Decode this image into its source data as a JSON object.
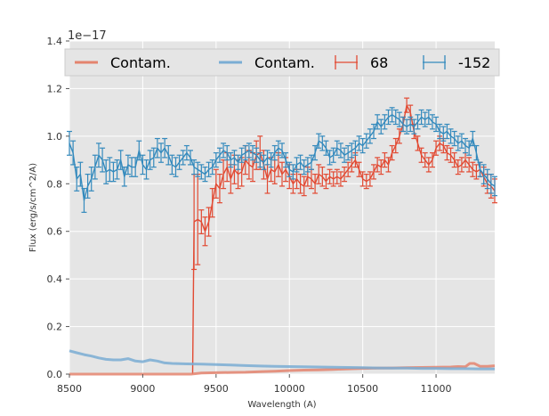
{
  "chart_data": {
    "type": "line",
    "title": "",
    "xlabel": "Wavelength (A)",
    "ylabel": "Flux (erg/s/cm^2/A)",
    "y_offset_label": "1e−17",
    "xlim": [
      8500,
      11400
    ],
    "ylim": [
      0.0,
      1.4
    ],
    "x_ticks": [
      8500,
      9000,
      9500,
      10000,
      10500,
      11000
    ],
    "x_tick_labels": [
      "8500",
      "9000",
      "9500",
      "10000",
      "10500",
      "11000"
    ],
    "y_ticks": [
      0.0,
      0.2,
      0.4,
      0.6,
      0.8,
      1.0,
      1.2,
      1.4
    ],
    "y_tick_labels": [
      "0.0",
      "0.2",
      "0.4",
      "0.6",
      "0.8",
      "1.0",
      "1.2",
      "1.4"
    ],
    "grid": true,
    "legend_position": "top",
    "legend": [
      {
        "label": "Contam.",
        "kind": "line",
        "color": "#E4846E"
      },
      {
        "label": "Contam.",
        "kind": "line",
        "color": "#7AADD4"
      },
      {
        "label": "68",
        "kind": "errorbar",
        "color": "#E24A33"
      },
      {
        "label": "-152",
        "kind": "errorbar",
        "color": "#348ABD"
      }
    ],
    "series": [
      {
        "name": "68",
        "color": "#E24A33",
        "x": [
          9350,
          9375,
          9400,
          9425,
          9450,
          9475,
          9500,
          9525,
          9550,
          9575,
          9600,
          9625,
          9650,
          9675,
          9700,
          9725,
          9750,
          9775,
          9800,
          9825,
          9850,
          9875,
          9900,
          9925,
          9950,
          9975,
          10000,
          10025,
          10050,
          10075,
          10100,
          10125,
          10150,
          10175,
          10200,
          10225,
          10250,
          10275,
          10300,
          10325,
          10350,
          10375,
          10400,
          10425,
          10450,
          10475,
          10500,
          10525,
          10550,
          10575,
          10600,
          10625,
          10650,
          10675,
          10700,
          10725,
          10750,
          10775,
          10800,
          10825,
          10850,
          10875,
          10900,
          10925,
          10950,
          10975,
          11000,
          11025,
          11050,
          11075,
          11100,
          11125,
          11150,
          11175,
          11200,
          11225,
          11250,
          11275,
          11300,
          11325,
          11350,
          11375,
          11400
        ],
        "y": [
          0.64,
          0.65,
          0.64,
          0.6,
          0.64,
          0.72,
          0.8,
          0.78,
          0.84,
          0.87,
          0.82,
          0.86,
          0.84,
          0.85,
          0.9,
          0.88,
          0.87,
          0.92,
          0.93,
          0.88,
          0.82,
          0.86,
          0.85,
          0.88,
          0.84,
          0.86,
          0.83,
          0.8,
          0.82,
          0.8,
          0.79,
          0.83,
          0.82,
          0.8,
          0.84,
          0.83,
          0.81,
          0.83,
          0.82,
          0.83,
          0.82,
          0.84,
          0.86,
          0.88,
          0.9,
          0.86,
          0.82,
          0.81,
          0.82,
          0.85,
          0.88,
          0.87,
          0.9,
          0.88,
          0.93,
          0.96,
          1.0,
          1.05,
          1.13,
          1.1,
          1.02,
          0.97,
          0.92,
          0.9,
          0.88,
          0.9,
          0.95,
          0.97,
          0.96,
          0.93,
          0.92,
          0.9,
          0.87,
          0.88,
          0.9,
          0.88,
          0.86,
          0.85,
          0.86,
          0.83,
          0.8,
          0.79,
          0.77
        ],
        "err": [
          0.2,
          0.19,
          0.05,
          0.06,
          0.06,
          0.06,
          0.06,
          0.06,
          0.06,
          0.06,
          0.06,
          0.06,
          0.06,
          0.06,
          0.06,
          0.06,
          0.06,
          0.06,
          0.07,
          0.06,
          0.06,
          0.05,
          0.05,
          0.05,
          0.05,
          0.05,
          0.05,
          0.04,
          0.04,
          0.04,
          0.04,
          0.04,
          0.04,
          0.04,
          0.04,
          0.04,
          0.03,
          0.03,
          0.03,
          0.03,
          0.03,
          0.03,
          0.03,
          0.03,
          0.03,
          0.03,
          0.03,
          0.03,
          0.03,
          0.03,
          0.03,
          0.03,
          0.03,
          0.03,
          0.03,
          0.03,
          0.03,
          0.03,
          0.03,
          0.03,
          0.03,
          0.03,
          0.03,
          0.03,
          0.03,
          0.03,
          0.03,
          0.03,
          0.03,
          0.03,
          0.03,
          0.03,
          0.03,
          0.03,
          0.03,
          0.03,
          0.03,
          0.03,
          0.03,
          0.04,
          0.04,
          0.05,
          0.05
        ],
        "drop_to_zero_at": 9340
      },
      {
        "name": "-152",
        "color": "#348ABD",
        "x": [
          8500,
          8525,
          8550,
          8575,
          8600,
          8625,
          8650,
          8675,
          8700,
          8725,
          8750,
          8775,
          8800,
          8825,
          8850,
          8875,
          8900,
          8925,
          8950,
          8975,
          9000,
          9025,
          9050,
          9075,
          9100,
          9125,
          9150,
          9175,
          9200,
          9225,
          9250,
          9275,
          9300,
          9325,
          9350,
          9375,
          9400,
          9425,
          9450,
          9475,
          9500,
          9525,
          9550,
          9575,
          9600,
          9625,
          9650,
          9675,
          9700,
          9725,
          9750,
          9775,
          9800,
          9825,
          9850,
          9875,
          9900,
          9925,
          9950,
          9975,
          10000,
          10025,
          10050,
          10075,
          10100,
          10125,
          10150,
          10175,
          10200,
          10225,
          10250,
          10275,
          10300,
          10325,
          10350,
          10375,
          10400,
          10425,
          10450,
          10475,
          10500,
          10525,
          10550,
          10575,
          10600,
          10625,
          10650,
          10675,
          10700,
          10725,
          10750,
          10775,
          10800,
          10825,
          10850,
          10875,
          10900,
          10925,
          10950,
          10975,
          11000,
          11025,
          11050,
          11075,
          11100,
          11125,
          11150,
          11175,
          11200,
          11225,
          11250,
          11275,
          11300,
          11325,
          11350,
          11375,
          11400
        ],
        "y": [
          0.97,
          0.93,
          0.82,
          0.84,
          0.73,
          0.79,
          0.82,
          0.87,
          0.92,
          0.9,
          0.85,
          0.86,
          0.85,
          0.86,
          0.9,
          0.83,
          0.88,
          0.87,
          0.87,
          0.94,
          0.88,
          0.86,
          0.9,
          0.91,
          0.95,
          0.93,
          0.95,
          0.92,
          0.88,
          0.87,
          0.89,
          0.91,
          0.93,
          0.91,
          0.87,
          0.86,
          0.85,
          0.84,
          0.86,
          0.87,
          0.9,
          0.92,
          0.94,
          0.93,
          0.9,
          0.91,
          0.89,
          0.92,
          0.93,
          0.94,
          0.93,
          0.92,
          0.9,
          0.89,
          0.91,
          0.9,
          0.93,
          0.95,
          0.94,
          0.9,
          0.86,
          0.85,
          0.88,
          0.89,
          0.87,
          0.88,
          0.89,
          0.93,
          0.98,
          0.97,
          0.95,
          0.91,
          0.92,
          0.95,
          0.94,
          0.92,
          0.93,
          0.94,
          0.95,
          0.97,
          0.96,
          0.98,
          1.0,
          1.02,
          1.06,
          1.04,
          1.06,
          1.08,
          1.09,
          1.08,
          1.07,
          1.05,
          1.04,
          1.05,
          1.04,
          1.06,
          1.08,
          1.07,
          1.08,
          1.06,
          1.05,
          1.02,
          1.01,
          1.02,
          1.0,
          0.99,
          0.97,
          0.98,
          0.96,
          0.95,
          0.99,
          0.93,
          0.86,
          0.84,
          0.82,
          0.8,
          0.79
        ],
        "err": [
          0.05,
          0.05,
          0.05,
          0.05,
          0.05,
          0.05,
          0.05,
          0.05,
          0.05,
          0.05,
          0.05,
          0.05,
          0.04,
          0.04,
          0.04,
          0.04,
          0.04,
          0.04,
          0.04,
          0.04,
          0.04,
          0.04,
          0.04,
          0.04,
          0.04,
          0.04,
          0.04,
          0.04,
          0.04,
          0.04,
          0.03,
          0.03,
          0.03,
          0.03,
          0.03,
          0.03,
          0.03,
          0.03,
          0.03,
          0.03,
          0.03,
          0.03,
          0.03,
          0.03,
          0.03,
          0.03,
          0.03,
          0.03,
          0.03,
          0.03,
          0.03,
          0.03,
          0.03,
          0.03,
          0.03,
          0.03,
          0.03,
          0.03,
          0.03,
          0.03,
          0.03,
          0.03,
          0.03,
          0.03,
          0.03,
          0.03,
          0.03,
          0.03,
          0.03,
          0.03,
          0.03,
          0.03,
          0.03,
          0.03,
          0.03,
          0.03,
          0.03,
          0.03,
          0.03,
          0.03,
          0.03,
          0.03,
          0.03,
          0.03,
          0.03,
          0.03,
          0.03,
          0.03,
          0.03,
          0.03,
          0.03,
          0.03,
          0.03,
          0.03,
          0.03,
          0.03,
          0.03,
          0.03,
          0.03,
          0.03,
          0.03,
          0.03,
          0.03,
          0.03,
          0.03,
          0.03,
          0.03,
          0.03,
          0.03,
          0.03,
          0.03,
          0.03,
          0.03,
          0.04,
          0.04,
          0.04,
          0.04
        ]
      },
      {
        "name": "Contam.",
        "color": "#E4846E",
        "x": [
          8500,
          9330,
          9400,
          9500,
          9600,
          9700,
          9800,
          9900,
          10000,
          10100,
          10200,
          10300,
          10400,
          10500,
          10600,
          10700,
          10800,
          10900,
          11000,
          11100,
          11150,
          11200,
          11230,
          11260,
          11300,
          11350,
          11400
        ],
        "y": [
          0.0,
          0.0,
          0.005,
          0.006,
          0.007,
          0.008,
          0.01,
          0.012,
          0.015,
          0.017,
          0.018,
          0.02,
          0.022,
          0.024,
          0.025,
          0.026,
          0.027,
          0.028,
          0.029,
          0.03,
          0.032,
          0.031,
          0.045,
          0.045,
          0.033,
          0.033,
          0.035
        ]
      },
      {
        "name": "Contam.",
        "color": "#7AADD4",
        "x": [
          8500,
          8550,
          8600,
          8650,
          8700,
          8750,
          8800,
          8850,
          8900,
          8950,
          9000,
          9050,
          9100,
          9150,
          9200,
          9300,
          9400,
          9500,
          9600,
          9700,
          9800,
          9900,
          10000,
          10100,
          10200,
          10300,
          10400,
          10500,
          10600,
          10700,
          10800,
          10900,
          11000,
          11100,
          11200,
          11300,
          11400
        ],
        "y": [
          0.098,
          0.09,
          0.082,
          0.076,
          0.068,
          0.062,
          0.06,
          0.06,
          0.065,
          0.055,
          0.052,
          0.06,
          0.055,
          0.047,
          0.045,
          0.043,
          0.042,
          0.04,
          0.038,
          0.036,
          0.034,
          0.033,
          0.032,
          0.031,
          0.03,
          0.029,
          0.028,
          0.027,
          0.026,
          0.025,
          0.025,
          0.024,
          0.024,
          0.023,
          0.023,
          0.022,
          0.022
        ]
      }
    ]
  }
}
